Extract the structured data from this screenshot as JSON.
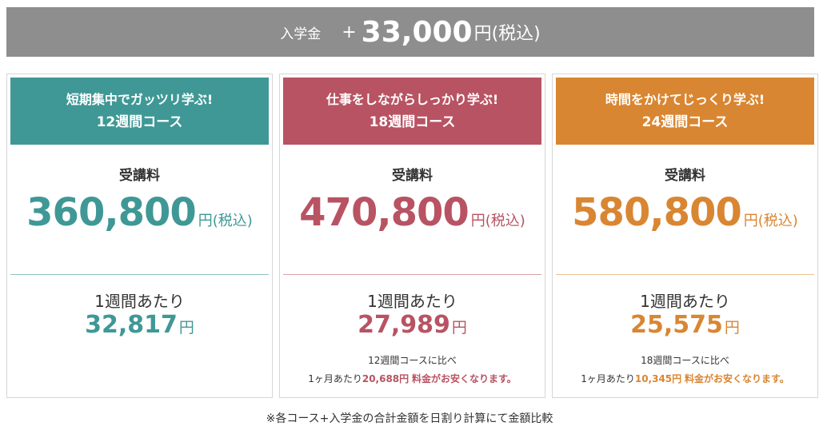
{
  "banner": {
    "label": "入学金",
    "plus": "+",
    "amount": "33,000",
    "unit": "円(税込)"
  },
  "colors": {
    "teal": "#3f9896",
    "rose": "#b85363",
    "orange": "#d98632",
    "banner_gray": "#8e8e8e"
  },
  "cards": [
    {
      "tagline": "短期集中でガッツリ学ぶ!",
      "course": "12週間コース",
      "fee_label": "受講料",
      "fee": "360,800",
      "fee_unit": "円(税込)",
      "week_label": "1週間あたり",
      "week_price": "32,817",
      "week_unit": "円",
      "compare_line1": "",
      "compare_prefix": "",
      "compare_amount": "",
      "compare_suffix": ""
    },
    {
      "tagline": "仕事をしながらしっかり学ぶ!",
      "course": "18週間コース",
      "fee_label": "受講料",
      "fee": "470,800",
      "fee_unit": "円(税込)",
      "week_label": "1週間あたり",
      "week_price": "27,989",
      "week_unit": "円",
      "compare_line1": "12週間コースに比べ",
      "compare_prefix": "1ヶ月あたり",
      "compare_amount": "20,688円",
      "compare_suffix": "料金がお安くなります。"
    },
    {
      "tagline": "時間をかけてじっくり学ぶ!",
      "course": "24週間コース",
      "fee_label": "受講料",
      "fee": "580,800",
      "fee_unit": "円(税込)",
      "week_label": "1週間あたり",
      "week_price": "25,575",
      "week_unit": "円",
      "compare_line1": "18週間コースに比べ",
      "compare_prefix": "1ヶ月あたり",
      "compare_amount": "10,345円",
      "compare_suffix": "料金がお安くなります。"
    }
  ],
  "footnote": "※各コース+入学金の合計金額を日割り計算にて金額比較"
}
